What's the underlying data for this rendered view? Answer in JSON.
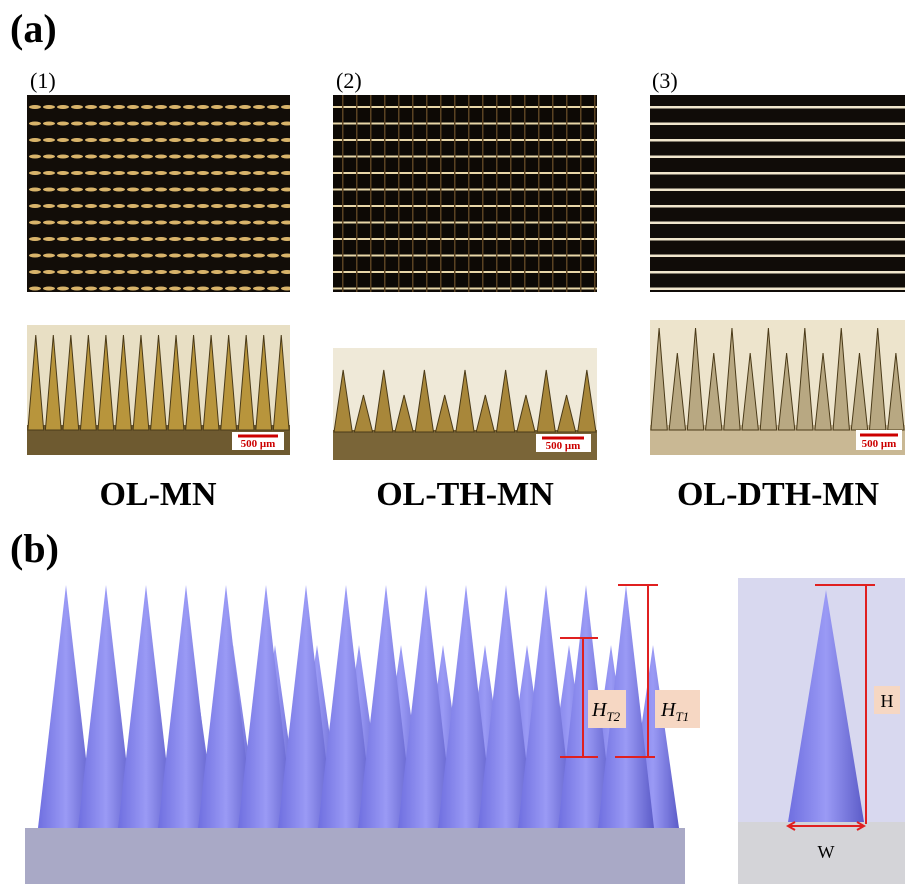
{
  "panel_a": {
    "label": "(a)",
    "samples": [
      {
        "index": "(1)",
        "scale_bar": "500 μm",
        "name": "OL-MN"
      },
      {
        "index": "(2)",
        "scale_bar": "500 μm",
        "name": "OL-TH-MN"
      },
      {
        "index": "(3)",
        "scale_bar": "500 μm",
        "name": "OL-DTH-MN"
      }
    ]
  },
  "panel_b": {
    "label": "(b)",
    "dims": {
      "ht2": {
        "main": "H",
        "sub": "T2"
      },
      "ht1": {
        "main": "H",
        "sub": "T1"
      },
      "h": "H",
      "w": "W"
    }
  }
}
